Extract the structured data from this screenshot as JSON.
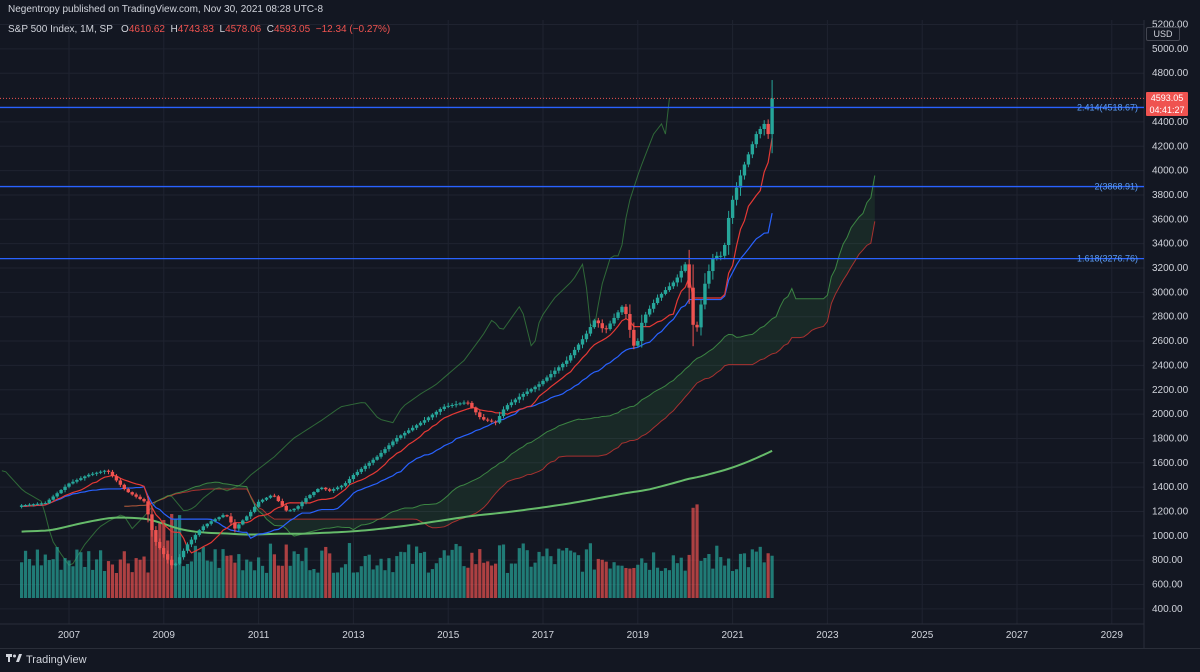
{
  "header": {
    "published": "Negentropy published on TradingView.com, Nov 30, 2021 08:28 UTC-8"
  },
  "legend": {
    "symbol": "S&P 500 Index, 1M, SP",
    "o_label": "O",
    "o_value": "4610.62",
    "h_label": "H",
    "h_value": "4743.83",
    "l_label": "L",
    "l_value": "4578.06",
    "c_label": "C",
    "c_value": "4593.05",
    "change": "−12.34 (−0.27%)"
  },
  "price_axis": {
    "currency": "USD",
    "last_price": "4593.05",
    "countdown": "04:41:27"
  },
  "footer": {
    "brand": "TradingView"
  },
  "colors": {
    "background": "#131722",
    "up": "#26a69a",
    "down": "#ef5350",
    "fib_line": "#2962ff",
    "tenkan": "#2962ff",
    "kijun": "#e53935",
    "ma": "#66bb6a",
    "cloud_up": "#4caf50",
    "cloud_down": "#e53935"
  },
  "chart_data": {
    "type": "candlestick",
    "ylim": [
      300,
      5200
    ],
    "y_ticks": [
      400,
      600,
      800,
      1000,
      1200,
      1400,
      1600,
      1800,
      2000,
      2200,
      2400,
      2600,
      2800,
      3000,
      3200,
      3400,
      3600,
      3800,
      4000,
      4200,
      4400,
      4800,
      5000,
      5200
    ],
    "x_ticks": [
      "2007",
      "2009",
      "2011",
      "2013",
      "2015",
      "2017",
      "2019",
      "2021",
      "2023",
      "2025",
      "2027",
      "2029"
    ],
    "x_tick_years": [
      2007,
      2009,
      2011,
      2013,
      2015,
      2017,
      2019,
      2021,
      2023,
      2025,
      2027,
      2029
    ],
    "fib_levels": [
      {
        "label": "2.414(4518.67)",
        "value": 4518.67
      },
      {
        "label": "2(3868.91)",
        "value": 3868.91
      },
      {
        "label": "1.618(3276.76)",
        "value": 3276.76
      }
    ],
    "last_close": 4593.05,
    "anchors": [
      [
        2006.0,
        1250
      ],
      [
        2006.5,
        1270
      ],
      [
        2007.0,
        1430
      ],
      [
        2007.4,
        1500
      ],
      [
        2007.8,
        1540
      ],
      [
        2008.2,
        1370
      ],
      [
        2008.6,
        1280
      ],
      [
        2008.8,
        970
      ],
      [
        2009.0,
        850
      ],
      [
        2009.2,
        740
      ],
      [
        2009.5,
        930
      ],
      [
        2009.8,
        1070
      ],
      [
        2010.0,
        1120
      ],
      [
        2010.3,
        1180
      ],
      [
        2010.5,
        1060
      ],
      [
        2010.8,
        1180
      ],
      [
        2011.0,
        1280
      ],
      [
        2011.3,
        1340
      ],
      [
        2011.6,
        1200
      ],
      [
        2011.8,
        1230
      ],
      [
        2012.0,
        1310
      ],
      [
        2012.3,
        1400
      ],
      [
        2012.5,
        1370
      ],
      [
        2012.8,
        1420
      ],
      [
        2013.0,
        1500
      ],
      [
        2013.5,
        1650
      ],
      [
        2013.9,
        1800
      ],
      [
        2014.5,
        1950
      ],
      [
        2014.9,
        2060
      ],
      [
        2015.4,
        2100
      ],
      [
        2015.7,
        1960
      ],
      [
        2016.0,
        1930
      ],
      [
        2016.2,
        2060
      ],
      [
        2016.6,
        2170
      ],
      [
        2016.9,
        2240
      ],
      [
        2017.5,
        2440
      ],
      [
        2017.9,
        2650
      ],
      [
        2018.1,
        2780
      ],
      [
        2018.3,
        2680
      ],
      [
        2018.7,
        2900
      ],
      [
        2018.95,
        2510
      ],
      [
        2019.1,
        2780
      ],
      [
        2019.4,
        2950
      ],
      [
        2019.8,
        3100
      ],
      [
        2020.0,
        3230
      ],
      [
        2020.1,
        3000
      ],
      [
        2020.2,
        2600
      ],
      [
        2020.4,
        3050
      ],
      [
        2020.6,
        3300
      ],
      [
        2020.8,
        3300
      ],
      [
        2020.95,
        3700
      ],
      [
        2021.2,
        4000
      ],
      [
        2021.5,
        4300
      ],
      [
        2021.7,
        4400
      ],
      [
        2021.75,
        4300
      ],
      [
        2021.83,
        4593
      ]
    ],
    "volume_axis_note": "Volume histogram overlaid at bottom of price pane"
  }
}
